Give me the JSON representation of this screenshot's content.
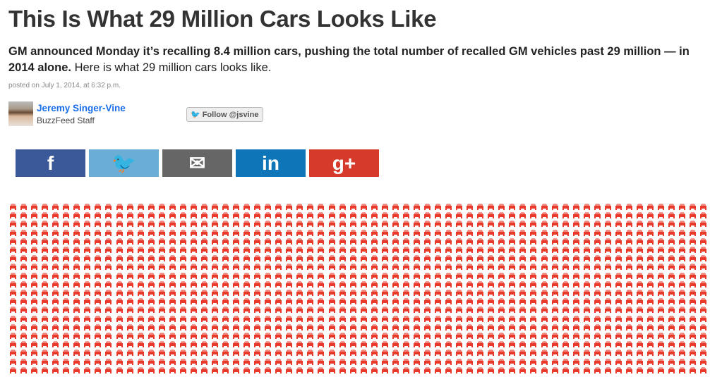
{
  "article": {
    "title": "This Is What 29 Million Cars Looks Like",
    "dek_bold": "GM announced Monday it’s recalling 8.4 million cars, pushing the total number of recalled GM vehicles past 29 million — in 2014 alone.",
    "dek_rest": " Here is what 29 million cars looks like.",
    "posted": "posted on July 1, 2014, at 6:32 p.m."
  },
  "author": {
    "name": "Jeremy Singer-Vine",
    "role": "BuzzFeed Staff",
    "follow_label": "Follow @jsvine"
  },
  "share": [
    {
      "name": "facebook",
      "glyph": "f",
      "color": "#3b5998"
    },
    {
      "name": "twitter",
      "glyph": "🐦",
      "color": "#6aadd5"
    },
    {
      "name": "email",
      "glyph": "✉",
      "color": "#666666"
    },
    {
      "name": "linkedin",
      "glyph": "in",
      "color": "#0e76b8"
    },
    {
      "name": "google-plus",
      "glyph": "g+",
      "color": "#d53a2a"
    }
  ],
  "cars": {
    "icon": "car-icon",
    "color": "#e8392a"
  }
}
